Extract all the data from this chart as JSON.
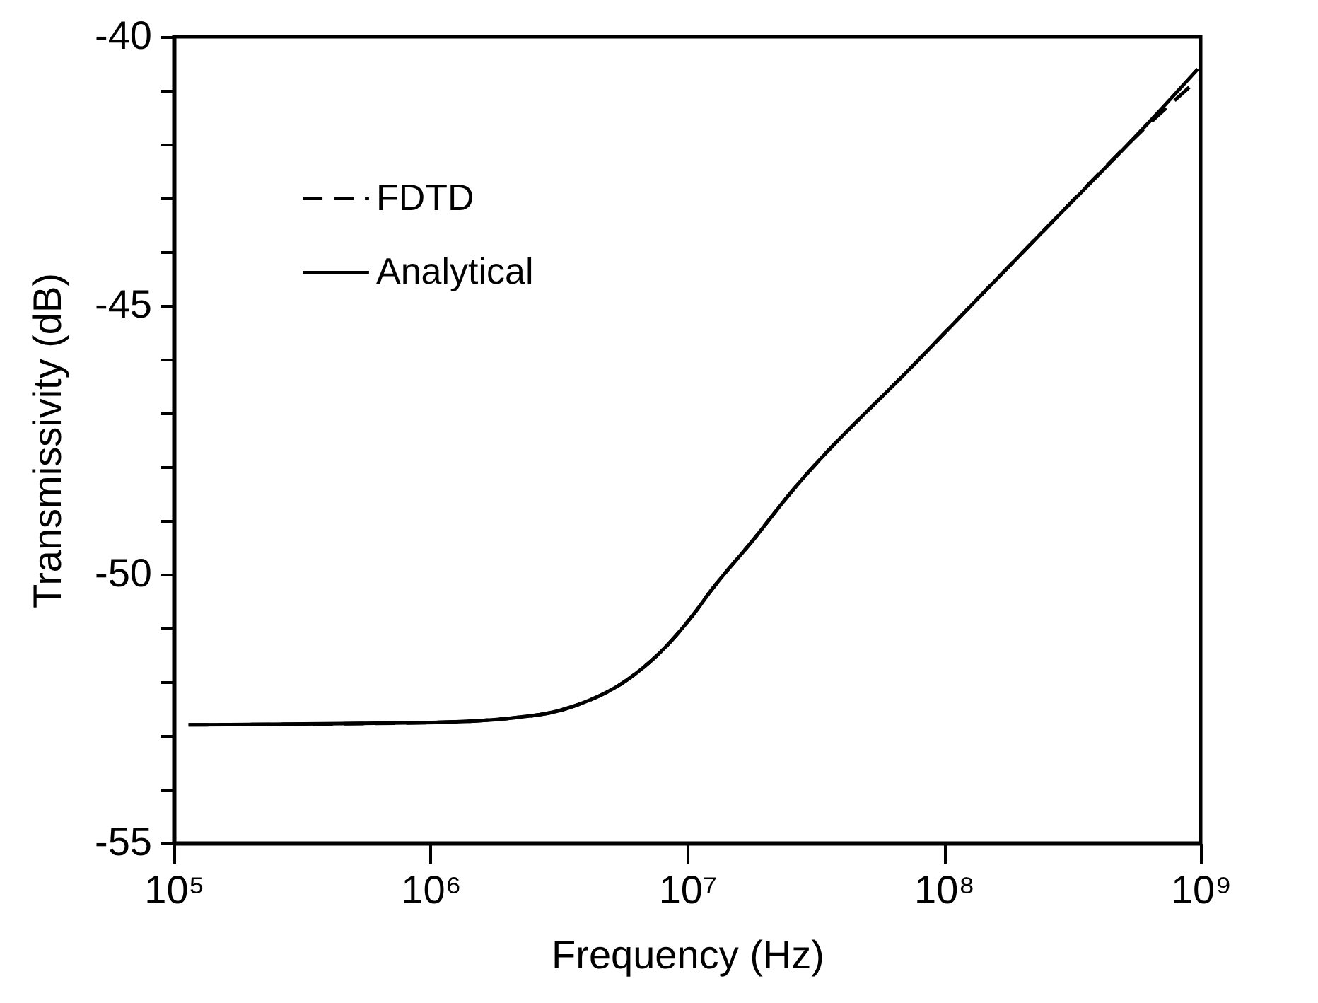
{
  "chart_data": {
    "type": "line",
    "xlabel": "Frequency (Hz)",
    "ylabel": "Transmissivity (dB)",
    "log": "x",
    "x": [
      114000,
      940000,
      2000000,
      3360000,
      5800000,
      7850000,
      10900000,
      12200000,
      18200000,
      24600000,
      80000000,
      230000000,
      670000000,
      975000000
    ],
    "series": [
      {
        "name": "FDTD",
        "color": "#000000",
        "line_style": "dashed",
        "values": [
          -52.8,
          -52.76,
          -52.68,
          -52.5,
          -51.97,
          -51.45,
          -50.66,
          -50.34,
          -49.34,
          -48.55,
          -46.0,
          -43.74,
          -41.5,
          -40.8
        ]
      },
      {
        "name": "Analytical",
        "color": "#000000",
        "line_style": "solid",
        "values": [
          -52.8,
          -52.76,
          -52.68,
          -52.5,
          -51.97,
          -51.45,
          -50.66,
          -50.34,
          -49.34,
          -48.55,
          -46.0,
          -43.74,
          -41.45,
          -40.6
        ]
      }
    ],
    "xlim": [
      100000,
      1000000000
    ],
    "xticks": [
      {
        "value": 100000,
        "label": "10⁵"
      },
      {
        "value": 1000000,
        "label": "10⁶"
      },
      {
        "value": 10000000,
        "label": "10⁷"
      },
      {
        "value": 100000000,
        "label": "10⁸"
      },
      {
        "value": 1000000000,
        "label": "10⁹"
      }
    ],
    "ylim": [
      -55,
      -40
    ],
    "yticks": [
      -55,
      {
        "value": -54,
        "label": null
      },
      {
        "value": -53,
        "label": null
      },
      {
        "value": -52,
        "label": null
      },
      {
        "value": -51,
        "label": null
      },
      -50,
      {
        "value": -49,
        "label": null
      },
      {
        "value": -48,
        "label": null
      },
      {
        "value": -47,
        "label": null
      },
      {
        "value": -46,
        "label": null
      },
      -45,
      {
        "value": -44,
        "label": null
      },
      {
        "value": -43,
        "label": null
      },
      {
        "value": -42,
        "label": null
      },
      {
        "value": -41,
        "label": null
      },
      -40
    ],
    "legend": "top left",
    "grid": false
  }
}
